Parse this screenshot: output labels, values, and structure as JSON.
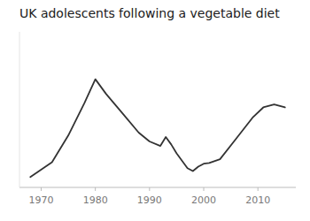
{
  "chart_data": {
    "type": "line",
    "title": "UK adolescents following a vegetable diet",
    "x": [
      1968,
      1972,
      1975,
      1978,
      1980,
      1982,
      1985,
      1988,
      1990,
      1992,
      1993,
      1994,
      1995,
      1997,
      1998,
      1999,
      2000,
      2001,
      2003,
      2006,
      2009,
      2011,
      2013,
      2015
    ],
    "values": [
      2.2,
      3.2,
      5.0,
      7.2,
      8.8,
      7.8,
      6.5,
      5.2,
      4.6,
      4.3,
      4.9,
      4.4,
      3.8,
      2.8,
      2.6,
      2.9,
      3.1,
      3.15,
      3.4,
      4.8,
      6.2,
      6.9,
      7.1,
      6.9
    ],
    "color": "#333333",
    "xlim": [
      1966,
      2017
    ],
    "xticks": [
      1970,
      1980,
      1990,
      2000,
      2010
    ],
    "ylim": [
      1.5,
      12.0
    ],
    "yticks": [],
    "tick_labels": "x"
  }
}
